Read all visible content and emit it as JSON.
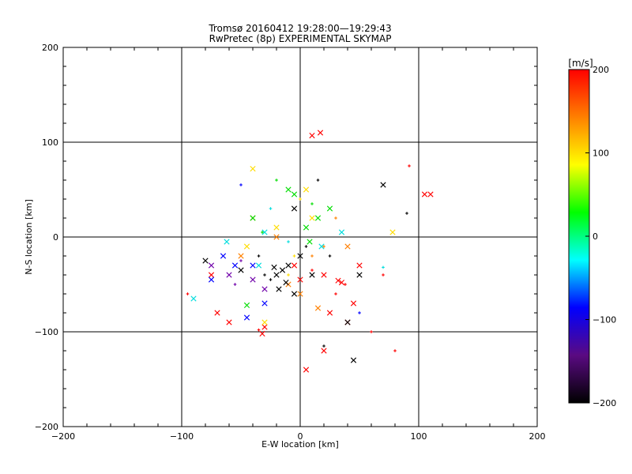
{
  "chart_data": {
    "type": "scatter",
    "title": "Tromsø 20160412 19:28:00—19:29:43",
    "subtitle": "RwPretec (8p) EXPERIMENTAL SKYMAP",
    "xlabel": "E-W location [km]",
    "ylabel": "N-S location [km]",
    "xlim": [
      -200,
      200
    ],
    "ylim": [
      -200,
      200
    ],
    "x_ticks": [
      -200,
      -100,
      0,
      100,
      200
    ],
    "y_ticks": [
      -200,
      -100,
      0,
      100,
      200
    ],
    "x_tick_labels": [
      "-200",
      "-100",
      "0",
      "100",
      "200"
    ],
    "y_tick_labels": [
      "-200",
      "-100",
      "0",
      "100",
      "200"
    ],
    "grid": true,
    "colorbar": {
      "label": "[m/s]",
      "range": [
        -200,
        200
      ],
      "ticks": [
        200,
        100,
        0,
        -100,
        -200
      ],
      "tick_labels": [
        "200",
        "100",
        "0",
        "-100",
        "-200"
      ],
      "stops": [
        "#000000",
        "#5a0a82",
        "#0000ff",
        "#00ffff",
        "#00ff00",
        "#ffff00",
        "#ff8000",
        "#ff0000"
      ]
    },
    "markers": [
      "x (large)",
      "+ (small)"
    ],
    "series": [
      {
        "name": "red (~200 m/s)",
        "color": "#ff0000",
        "points": [
          [
            17,
            110
          ],
          [
            10,
            107
          ],
          [
            92,
            75
          ],
          [
            105,
            45
          ],
          [
            -75,
            -40
          ],
          [
            -95,
            -60
          ],
          [
            -70,
            -80
          ],
          [
            35,
            -48
          ],
          [
            38,
            -50
          ],
          [
            32,
            -46
          ],
          [
            20,
            -40
          ],
          [
            30,
            -60
          ],
          [
            45,
            -70
          ],
          [
            40,
            -90
          ],
          [
            60,
            -100
          ],
          [
            20,
            -120
          ],
          [
            -30,
            -95
          ],
          [
            -35,
            -98
          ],
          [
            -32,
            -102
          ],
          [
            5,
            -140
          ],
          [
            80,
            -120
          ],
          [
            110,
            45
          ],
          [
            50,
            -30
          ],
          [
            70,
            -40
          ],
          [
            -5,
            -30
          ],
          [
            0,
            -45
          ],
          [
            10,
            -35
          ],
          [
            25,
            -80
          ],
          [
            -60,
            -90
          ]
        ]
      },
      {
        "name": "orange (~150 m/s)",
        "color": "#ff8000",
        "points": [
          [
            -40,
            20
          ],
          [
            -20,
            0
          ],
          [
            10,
            -20
          ],
          [
            40,
            -10
          ],
          [
            -10,
            -50
          ],
          [
            20,
            -10
          ],
          [
            0,
            -60
          ],
          [
            -50,
            -20
          ],
          [
            30,
            20
          ],
          [
            15,
            -75
          ]
        ]
      },
      {
        "name": "yellow (~100 m/s)",
        "color": "#ffdd00",
        "points": [
          [
            -40,
            72
          ],
          [
            -45,
            -10
          ],
          [
            0,
            40
          ],
          [
            -20,
            10
          ],
          [
            78,
            5
          ],
          [
            -10,
            -40
          ],
          [
            -30,
            -90
          ],
          [
            10,
            20
          ],
          [
            -5,
            -20
          ],
          [
            5,
            50
          ]
        ]
      },
      {
        "name": "green (~0 m/s)",
        "color": "#00dd00",
        "points": [
          [
            -45,
            -72
          ],
          [
            -40,
            20
          ],
          [
            -32,
            5
          ],
          [
            -10,
            50
          ],
          [
            5,
            10
          ],
          [
            10,
            35
          ],
          [
            25,
            30
          ],
          [
            15,
            20
          ],
          [
            -20,
            60
          ],
          [
            -5,
            45
          ],
          [
            8,
            -5
          ]
        ]
      },
      {
        "name": "cyan (~-50 m/s)",
        "color": "#00dddd",
        "points": [
          [
            -62,
            -5
          ],
          [
            -30,
            5
          ],
          [
            -10,
            -5
          ],
          [
            18,
            -10
          ],
          [
            35,
            5
          ],
          [
            70,
            -32
          ],
          [
            -90,
            -65
          ],
          [
            -35,
            -30
          ],
          [
            -25,
            30
          ]
        ]
      },
      {
        "name": "blue (~-100 m/s)",
        "color": "#0000ff",
        "points": [
          [
            -65,
            -20
          ],
          [
            -55,
            -30
          ],
          [
            -50,
            55
          ],
          [
            -40,
            -30
          ],
          [
            -45,
            -85
          ],
          [
            50,
            -80
          ],
          [
            -75,
            -45
          ],
          [
            -30,
            -70
          ]
        ]
      },
      {
        "name": "purple (~-150 m/s)",
        "color": "#7000aa",
        "points": [
          [
            -75,
            -30
          ],
          [
            -60,
            -40
          ],
          [
            -50,
            -25
          ],
          [
            -40,
            -45
          ],
          [
            -30,
            -55
          ],
          [
            -55,
            -50
          ]
        ]
      },
      {
        "name": "black (~-200 m/s)",
        "color": "#000000",
        "points": [
          [
            -20,
            -40
          ],
          [
            -15,
            -35
          ],
          [
            -25,
            -45
          ],
          [
            -18,
            -55
          ],
          [
            -10,
            -30
          ],
          [
            -30,
            -40
          ],
          [
            -12,
            -48
          ],
          [
            0,
            -20
          ],
          [
            5,
            -10
          ],
          [
            -5,
            30
          ],
          [
            10,
            -40
          ],
          [
            15,
            60
          ],
          [
            50,
            -40
          ],
          [
            70,
            55
          ],
          [
            90,
            25
          ],
          [
            40,
            -90
          ],
          [
            45,
            -130
          ],
          [
            20,
            -115
          ],
          [
            -80,
            -25
          ],
          [
            -50,
            -35
          ],
          [
            -35,
            -20
          ],
          [
            -5,
            -60
          ],
          [
            -22,
            -32
          ],
          [
            25,
            -20
          ]
        ]
      }
    ]
  }
}
